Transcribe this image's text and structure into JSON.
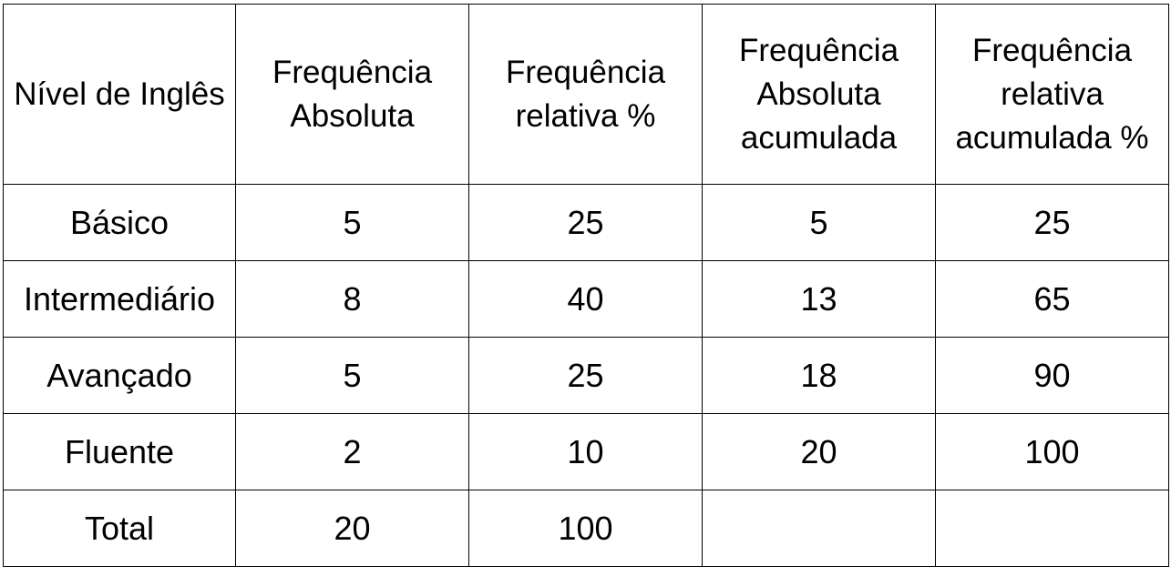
{
  "chart_data": {
    "type": "table",
    "columns": [
      "Nível de Inglês",
      "Frequência Absoluta",
      "Frequência relativa %",
      "Frequência Absoluta acumulada",
      "Frequência relativa acumulada %"
    ],
    "rows": [
      [
        "Básico",
        "5",
        "25",
        "5",
        "25"
      ],
      [
        "Intermediário",
        "8",
        "40",
        "13",
        "65"
      ],
      [
        "Avançado",
        "5",
        "25",
        "18",
        "90"
      ],
      [
        "Fluente",
        "2",
        "10",
        "20",
        "100"
      ],
      [
        "Total",
        "20",
        "100",
        "",
        ""
      ]
    ]
  }
}
